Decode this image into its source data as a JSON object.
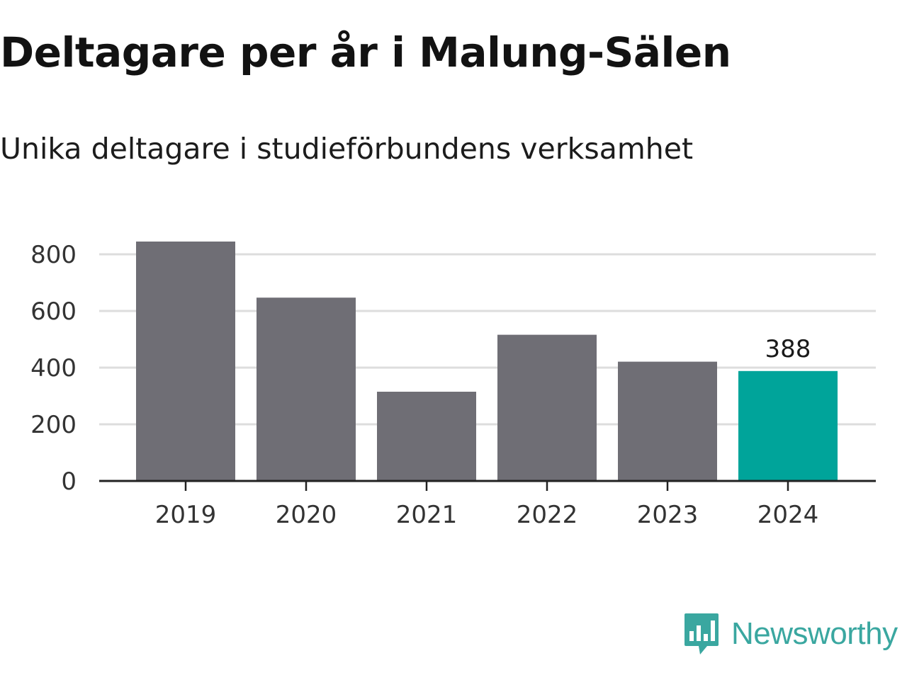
{
  "colors": {
    "bar_default": "#6f6e75",
    "bar_highlight": "#00a49a",
    "grid": "#dddddd",
    "axis": "#222222",
    "brand": "#3aa7a0"
  },
  "logo": {
    "icon": "bar-chart-speech-bubble-icon",
    "text": "Newsworthy"
  },
  "chart_data": {
    "type": "bar",
    "title": "Deltagare per år i Malung-Sälen",
    "subtitle": "Unika deltagare i studieförbundens verksamhet",
    "xlabel": "",
    "ylabel": "",
    "categories": [
      "2019",
      "2020",
      "2021",
      "2022",
      "2023",
      "2024"
    ],
    "values": [
      845,
      647,
      315,
      516,
      421,
      388
    ],
    "highlight_index": 5,
    "data_labels": [
      {
        "index": 5,
        "text": "388"
      }
    ],
    "ylim": [
      0,
      800
    ],
    "yticks": [
      0,
      200,
      400,
      600,
      800
    ],
    "ytick_labels": [
      "0",
      "200",
      "400",
      "600",
      "800"
    ],
    "grid": true,
    "legend": "none"
  }
}
